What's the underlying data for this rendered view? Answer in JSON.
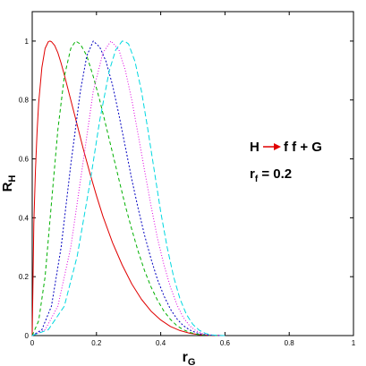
{
  "chart_data": {
    "type": "line",
    "title": "",
    "xlabel": "r",
    "xlabel_sub": "G",
    "ylabel": "R",
    "ylabel_sub": "H",
    "xlim": [
      0,
      1
    ],
    "ylim": [
      0,
      1.1
    ],
    "xticks": [
      "0",
      "0.2",
      "0.4",
      "0.6",
      "0.8",
      "1"
    ],
    "xtick_values": [
      0,
      0.2,
      0.4,
      0.6,
      0.8,
      1
    ],
    "yticks": [
      "0",
      "0.2",
      "0.4",
      "0.6",
      "0.8",
      "1"
    ],
    "ytick_values": [
      0,
      0.2,
      0.4,
      0.6,
      0.8,
      1
    ],
    "grid": false,
    "legend": "none",
    "annotations": {
      "process_left": "H",
      "process_right": "f f + G",
      "arrow_color": "#e00000",
      "param_main": "r",
      "param_sub": "f",
      "param_value": " = 0.2"
    },
    "series": [
      {
        "color": "#e00000",
        "dash": "",
        "x": [
          0,
          0.005,
          0.01,
          0.015,
          0.02,
          0.03,
          0.04,
          0.05,
          0.055,
          0.06,
          0.07,
          0.08,
          0.09,
          0.1,
          0.12,
          0.14,
          0.16,
          0.18,
          0.2,
          0.22,
          0.25,
          0.28,
          0.31,
          0.34,
          0.37,
          0.4,
          0.43,
          0.46,
          0.49,
          0.52,
          0.55,
          0.58,
          0.6
        ],
        "y": [
          0,
          0.38,
          0.56,
          0.69,
          0.79,
          0.91,
          0.975,
          0.998,
          1.0,
          0.998,
          0.985,
          0.96,
          0.925,
          0.885,
          0.8,
          0.715,
          0.63,
          0.55,
          0.475,
          0.405,
          0.315,
          0.24,
          0.175,
          0.123,
          0.083,
          0.053,
          0.031,
          0.017,
          0.008,
          0.003,
          0.001,
          0.0002,
          0
        ]
      },
      {
        "color": "#00b000",
        "dash": "4,3",
        "x": [
          0,
          0.02,
          0.04,
          0.06,
          0.08,
          0.1,
          0.12,
          0.135,
          0.15,
          0.17,
          0.19,
          0.21,
          0.23,
          0.25,
          0.27,
          0.29,
          0.31,
          0.33,
          0.35,
          0.37,
          0.39,
          0.41,
          0.43,
          0.45,
          0.47,
          0.49,
          0.51,
          0.53,
          0.55,
          0.58,
          0.6
        ],
        "y": [
          0,
          0.05,
          0.2,
          0.45,
          0.7,
          0.88,
          0.975,
          1.0,
          0.99,
          0.95,
          0.88,
          0.8,
          0.71,
          0.62,
          0.53,
          0.44,
          0.36,
          0.285,
          0.22,
          0.165,
          0.12,
          0.083,
          0.055,
          0.034,
          0.02,
          0.011,
          0.005,
          0.002,
          0.0008,
          0.0001,
          0
        ]
      },
      {
        "color": "#0000c0",
        "dash": "2,2",
        "x": [
          0,
          0.03,
          0.06,
          0.09,
          0.12,
          0.15,
          0.17,
          0.19,
          0.21,
          0.23,
          0.25,
          0.27,
          0.29,
          0.31,
          0.33,
          0.35,
          0.37,
          0.39,
          0.41,
          0.43,
          0.45,
          0.47,
          0.49,
          0.51,
          0.53,
          0.55,
          0.58,
          0.6
        ],
        "y": [
          0,
          0.02,
          0.1,
          0.3,
          0.58,
          0.83,
          0.95,
          1.0,
          0.98,
          0.93,
          0.85,
          0.75,
          0.64,
          0.53,
          0.43,
          0.34,
          0.26,
          0.19,
          0.135,
          0.09,
          0.057,
          0.034,
          0.019,
          0.01,
          0.004,
          0.0015,
          0.0002,
          0
        ]
      },
      {
        "color": "#e000e0",
        "dash": "1,2",
        "x": [
          0,
          0.04,
          0.08,
          0.12,
          0.16,
          0.19,
          0.22,
          0.245,
          0.27,
          0.29,
          0.31,
          0.33,
          0.35,
          0.37,
          0.39,
          0.41,
          0.43,
          0.45,
          0.47,
          0.49,
          0.51,
          0.53,
          0.55,
          0.58,
          0.6
        ],
        "y": [
          0,
          0.02,
          0.1,
          0.3,
          0.6,
          0.83,
          0.96,
          1.0,
          0.97,
          0.9,
          0.8,
          0.68,
          0.56,
          0.44,
          0.33,
          0.24,
          0.165,
          0.105,
          0.062,
          0.033,
          0.016,
          0.007,
          0.0025,
          0.0004,
          0
        ]
      },
      {
        "color": "#00d8e0",
        "dash": "6,3",
        "x": [
          0,
          0.05,
          0.1,
          0.14,
          0.18,
          0.21,
          0.24,
          0.26,
          0.28,
          0.29,
          0.3,
          0.32,
          0.34,
          0.36,
          0.38,
          0.4,
          0.42,
          0.44,
          0.46,
          0.48,
          0.5,
          0.52,
          0.54,
          0.56,
          0.58,
          0.6
        ],
        "y": [
          0,
          0.02,
          0.1,
          0.27,
          0.52,
          0.73,
          0.9,
          0.97,
          1.0,
          0.998,
          0.99,
          0.93,
          0.83,
          0.7,
          0.56,
          0.42,
          0.3,
          0.2,
          0.125,
          0.072,
          0.038,
          0.018,
          0.007,
          0.002,
          0.0004,
          0
        ]
      }
    ]
  }
}
